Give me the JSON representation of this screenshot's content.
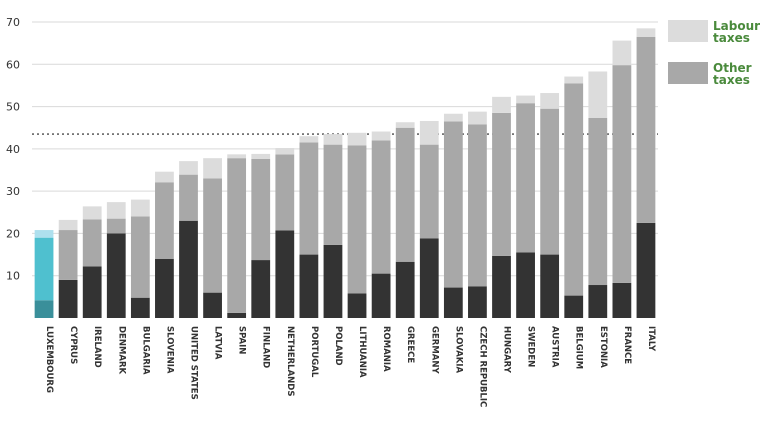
{
  "chart_data": {
    "type": "bar",
    "stacked": true,
    "ylim": [
      0,
      70
    ],
    "y_ticks": [
      "10",
      "20",
      "30",
      "40",
      "50",
      "60",
      "70"
    ],
    "grid": true,
    "reference_line": 43.5,
    "categories": [
      "LUXEMBOURG",
      "CYPRUS",
      "IRELAND",
      "DENMARK",
      "BULGARIA",
      "SLOVENIA",
      "UNITED STATES",
      "LATVIA",
      "SPAIN",
      "FINLAND",
      "NETHERLANDS",
      "PORTUGAL",
      "POLAND",
      "LITHUANIA",
      "ROMANIA",
      "GREECE",
      "GERMANY",
      "SLOVAKIA",
      "CZECH REPUBLIC",
      "HUNGARY",
      "SWEDEN",
      "AUSTRIA",
      "BELGIUM",
      "ESTONIA",
      "FRANCE",
      "ITALY"
    ],
    "highlight_category": "LUXEMBOURG",
    "series": [
      {
        "name": "",
        "values": [
          4.2,
          9.0,
          12.2,
          20.0,
          4.8,
          14.0,
          23.0,
          6.0,
          1.2,
          13.7,
          20.7,
          15.0,
          17.3,
          5.8,
          10.5,
          13.3,
          18.8,
          7.2,
          7.5,
          14.7,
          15.5,
          15.0,
          5.3,
          7.8,
          8.3,
          22.5
        ]
      },
      {
        "name": "Other taxes",
        "values": [
          14.8,
          11.8,
          11.1,
          3.5,
          19.2,
          18.1,
          10.9,
          27.0,
          36.6,
          23.9,
          18.0,
          26.5,
          23.7,
          35.0,
          31.5,
          31.7,
          22.2,
          39.3,
          38.3,
          33.8,
          35.3,
          34.5,
          50.2,
          39.5,
          51.5,
          44.0
        ]
      },
      {
        "name": "Labour taxes",
        "values": [
          1.8,
          2.4,
          3.1,
          3.9,
          4.0,
          2.5,
          3.2,
          4.8,
          0.9,
          1.2,
          1.5,
          1.5,
          2.5,
          3.0,
          2.1,
          1.3,
          5.6,
          1.8,
          3.0,
          3.8,
          1.8,
          3.7,
          1.6,
          11.0,
          5.8,
          2.0
        ]
      }
    ],
    "colors": {
      "base": "#333333",
      "middle": "#a8a8a8",
      "top": "#dcdcdc",
      "highlight_base": "#3a8f9a",
      "highlight_middle": "#4fc0cf",
      "highlight_top": "#aee0ee",
      "grid": "#d9d9d9",
      "legend_text": "#4a8a3c"
    }
  },
  "legend": [
    {
      "line1": "Labour",
      "line2": "taxes",
      "color": "#dcdcdc"
    },
    {
      "line1": "Other",
      "line2": "taxes",
      "color": "#a8a8a8"
    }
  ]
}
